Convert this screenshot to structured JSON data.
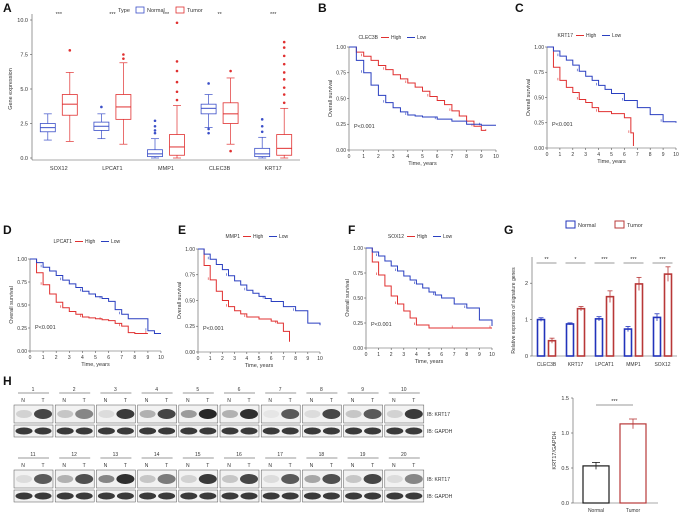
{
  "panels": {
    "A": "A",
    "B": "B",
    "C": "C",
    "D": "D",
    "E": "E",
    "F": "F",
    "G": "G",
    "H": "H"
  },
  "colors": {
    "normal": "#3b4fc8",
    "tumor": "#e03030",
    "high": "#e03030",
    "low": "#2a3fc0",
    "normal_bar": "#2233bb",
    "tumor_bar": "#b83838",
    "blot": "#1a1a1a"
  },
  "chart_data": [
    {
      "id": "A",
      "type": "box",
      "legend_title": "Type",
      "legend": [
        "Normal",
        "Tumor"
      ],
      "ylabel": "Gene expression",
      "ylim": [
        0,
        10
      ],
      "yticks": [
        0.0,
        2.5,
        5.0,
        7.5,
        10.0
      ],
      "ytick_labels": [
        "0.0",
        "2.5",
        "5.0",
        "7.5",
        "10.0"
      ],
      "categories": [
        "SOX12",
        "LPCAT1",
        "MMP1",
        "CLEC3B",
        "KRT17"
      ],
      "significance": [
        "***",
        "***",
        "***",
        "**",
        "***"
      ],
      "series": [
        {
          "name": "Normal",
          "boxes": [
            {
              "min": 1.3,
              "q1": 1.9,
              "median": 2.2,
              "q3": 2.5,
              "max": 3.2,
              "outliers": []
            },
            {
              "min": 1.4,
              "q1": 2.0,
              "median": 2.3,
              "q3": 2.6,
              "max": 3.2,
              "outliers": [
                3.7
              ]
            },
            {
              "min": 0.0,
              "q1": 0.1,
              "median": 0.3,
              "q3": 0.6,
              "max": 1.4,
              "outliers": [
                1.8,
                2.0,
                2.3,
                2.7
              ]
            },
            {
              "min": 2.2,
              "q1": 3.2,
              "median": 3.6,
              "q3": 3.9,
              "max": 4.6,
              "outliers": [
                1.8,
                2.1,
                5.4
              ]
            },
            {
              "min": 0.0,
              "q1": 0.1,
              "median": 0.3,
              "q3": 0.7,
              "max": 1.5,
              "outliers": [
                1.9,
                2.3,
                2.8
              ]
            }
          ]
        },
        {
          "name": "Tumor",
          "boxes": [
            {
              "min": 1.2,
              "q1": 3.1,
              "median": 3.9,
              "q3": 4.6,
              "max": 6.2,
              "outliers": [
                7.8
              ]
            },
            {
              "min": 1.0,
              "q1": 2.8,
              "median": 3.7,
              "q3": 4.6,
              "max": 6.9,
              "outliers": [
                7.2,
                7.5
              ]
            },
            {
              "min": 0.0,
              "q1": 0.2,
              "median": 0.8,
              "q3": 1.7,
              "max": 3.8,
              "outliers": [
                4.2,
                4.8,
                5.5,
                6.3,
                7.0,
                9.8
              ]
            },
            {
              "min": 1.0,
              "q1": 2.5,
              "median": 3.2,
              "q3": 4.0,
              "max": 5.8,
              "outliers": [
                0.5,
                6.3
              ]
            },
            {
              "min": 0.0,
              "q1": 0.2,
              "median": 0.7,
              "q3": 1.7,
              "max": 3.6,
              "outliers": [
                4.0,
                4.6,
                5.1,
                5.7,
                6.2,
                6.8,
                7.4,
                8.0,
                8.4
              ]
            }
          ]
        }
      ]
    },
    {
      "id": "B",
      "type": "line",
      "gene": "CLEC3B",
      "legend": [
        "High",
        "Low"
      ],
      "ylabel": "Overall survival",
      "xlabel": "Time, years",
      "pval": "P<0.001",
      "xticks": [
        0,
        1,
        2,
        3,
        4,
        5,
        6,
        7,
        8,
        9,
        10
      ],
      "yticks": [
        0,
        0.25,
        0.5,
        0.75,
        1.0
      ],
      "ytick_labels": [
        "0.00",
        "0.25",
        "0.50",
        "0.75",
        "1.00"
      ],
      "series": [
        {
          "name": "High",
          "x": [
            0,
            0.5,
            1,
            1.5,
            2,
            2.5,
            3,
            3.5,
            4,
            4.5,
            5,
            5.5,
            6,
            6.5,
            7,
            7.5,
            8,
            8.5,
            9,
            9.3
          ],
          "y": [
            1,
            0.95,
            0.91,
            0.87,
            0.82,
            0.78,
            0.73,
            0.69,
            0.65,
            0.61,
            0.57,
            0.52,
            0.48,
            0.44,
            0.38,
            0.33,
            0.28,
            0.23,
            0.19,
            0.2
          ]
        },
        {
          "name": "Low",
          "x": [
            0,
            0.5,
            1,
            1.5,
            2,
            2.5,
            3,
            3.5,
            4,
            4.5,
            5,
            6,
            7,
            8,
            9,
            10
          ],
          "y": [
            1,
            0.87,
            0.75,
            0.63,
            0.53,
            0.46,
            0.41,
            0.37,
            0.34,
            0.33,
            0.32,
            0.3,
            0.28,
            0.25,
            0.24,
            0.24
          ]
        }
      ]
    },
    {
      "id": "C",
      "type": "line",
      "gene": "KRT17",
      "legend": [
        "High",
        "Low"
      ],
      "ylabel": "Overall survival",
      "xlabel": "Time, years",
      "pval": "P<0.001",
      "xticks": [
        0,
        1,
        2,
        3,
        4,
        5,
        6,
        7,
        8,
        9,
        10
      ],
      "yticks": [
        0,
        0.25,
        0.5,
        0.75,
        1.0
      ],
      "ytick_labels": [
        "0.00",
        "0.25",
        "0.50",
        "0.75",
        "1.00"
      ],
      "series": [
        {
          "name": "High",
          "x": [
            0,
            0.5,
            1,
            1.5,
            2,
            2.5,
            3,
            3.5,
            4,
            5,
            6,
            6.5,
            6.7
          ],
          "y": [
            1,
            0.8,
            0.67,
            0.6,
            0.55,
            0.48,
            0.45,
            0.4,
            0.36,
            0.34,
            0.3,
            0.15,
            0.02
          ]
        },
        {
          "name": "Low",
          "x": [
            0,
            0.5,
            1,
            1.5,
            2,
            2.5,
            3,
            3.5,
            4,
            4.5,
            5,
            6,
            7,
            8,
            9,
            10
          ],
          "y": [
            1,
            0.96,
            0.91,
            0.87,
            0.82,
            0.76,
            0.71,
            0.67,
            0.62,
            0.58,
            0.54,
            0.47,
            0.4,
            0.33,
            0.26,
            0.25
          ]
        }
      ]
    },
    {
      "id": "D",
      "type": "line",
      "gene": "LPCAT1",
      "legend": [
        "High",
        "Low"
      ],
      "ylabel": "Overall survival",
      "xlabel": "Time, years",
      "pval": "P<0.001",
      "xticks": [
        0,
        1,
        2,
        3,
        4,
        5,
        6,
        7,
        8,
        9,
        10
      ],
      "yticks": [
        0,
        0.25,
        0.5,
        0.75,
        1.0
      ],
      "ytick_labels": [
        "0.00",
        "0.25",
        "0.50",
        "0.75",
        "1.00"
      ],
      "series": [
        {
          "name": "High",
          "x": [
            0,
            0.5,
            1,
            1.5,
            2,
            2.5,
            3,
            3.5,
            4,
            4.5,
            5,
            5.5,
            6,
            6.5,
            7,
            7.5,
            8,
            9
          ],
          "y": [
            1,
            0.85,
            0.72,
            0.62,
            0.53,
            0.47,
            0.43,
            0.4,
            0.37,
            0.36,
            0.35,
            0.34,
            0.33,
            0.3,
            0.27,
            0.2,
            0.19,
            0.19
          ]
        },
        {
          "name": "Low",
          "x": [
            0,
            0.5,
            1,
            1.5,
            2,
            2.5,
            3,
            3.5,
            4,
            4.5,
            5,
            5.5,
            6,
            6.5,
            7,
            7.5,
            8,
            9,
            9.5,
            10
          ],
          "y": [
            1,
            0.96,
            0.91,
            0.87,
            0.82,
            0.77,
            0.73,
            0.69,
            0.65,
            0.62,
            0.59,
            0.57,
            0.54,
            0.45,
            0.4,
            0.35,
            0.35,
            0.22,
            0.19,
            0.19
          ]
        }
      ]
    },
    {
      "id": "E",
      "type": "line",
      "gene": "MMP1",
      "legend": [
        "High",
        "Low"
      ],
      "ylabel": "Overall survival",
      "xlabel": "Time, years",
      "pval": "P<0.001",
      "xticks": [
        0,
        1,
        2,
        3,
        4,
        5,
        6,
        7,
        8,
        9,
        10
      ],
      "yticks": [
        0,
        0.25,
        0.5,
        0.75,
        1.0
      ],
      "ytick_labels": [
        "0.00",
        "0.25",
        "0.50",
        "0.75",
        "1.00"
      ],
      "series": [
        {
          "name": "High",
          "x": [
            0,
            0.5,
            1,
            1.5,
            2,
            2.5,
            3,
            3.5,
            4,
            5,
            6,
            6.5,
            7,
            7.5
          ],
          "y": [
            1,
            0.84,
            0.7,
            0.59,
            0.5,
            0.44,
            0.4,
            0.37,
            0.34,
            0.32,
            0.3,
            0.28,
            0.2,
            0.1
          ]
        },
        {
          "name": "Low",
          "x": [
            0,
            0.5,
            1,
            1.5,
            2,
            2.5,
            3,
            3.5,
            4,
            4.5,
            5,
            5.5,
            6,
            7,
            8,
            9,
            10
          ],
          "y": [
            1,
            0.95,
            0.9,
            0.85,
            0.8,
            0.74,
            0.69,
            0.65,
            0.6,
            0.57,
            0.54,
            0.52,
            0.49,
            0.44,
            0.4,
            0.28,
            0.26
          ]
        }
      ]
    },
    {
      "id": "F",
      "type": "line",
      "gene": "SOX12",
      "legend": [
        "High",
        "Low"
      ],
      "ylabel": "Overall survival",
      "xlabel": "Time, years",
      "pval": "P<0.001",
      "xticks": [
        0,
        1,
        2,
        3,
        4,
        5,
        6,
        7,
        8,
        9,
        10
      ],
      "yticks": [
        0,
        0.25,
        0.5,
        0.75,
        1.0
      ],
      "ytick_labels": [
        "0.00",
        "0.25",
        "0.50",
        "0.75",
        "1.00"
      ],
      "series": [
        {
          "name": "High",
          "x": [
            0,
            0.5,
            1,
            1.5,
            2,
            2.5,
            3,
            3.5,
            4,
            5,
            6,
            7,
            8,
            9,
            10
          ],
          "y": [
            1,
            0.86,
            0.73,
            0.62,
            0.52,
            0.44,
            0.37,
            0.3,
            0.23,
            0.2,
            0.2,
            0.2,
            0.2,
            0.2,
            0.2
          ]
        },
        {
          "name": "Low",
          "x": [
            0,
            0.5,
            1,
            1.5,
            2,
            2.5,
            3,
            3.5,
            4,
            4.5,
            5,
            5.5,
            6,
            7,
            8,
            9,
            10
          ],
          "y": [
            1,
            0.96,
            0.92,
            0.87,
            0.82,
            0.77,
            0.72,
            0.68,
            0.64,
            0.6,
            0.56,
            0.53,
            0.5,
            0.44,
            0.4,
            0.28,
            0.22
          ]
        }
      ]
    },
    {
      "id": "G",
      "type": "bar",
      "legend": [
        "Normal",
        "Tumor"
      ],
      "ylabel": "Relative expression of signature genes",
      "categories": [
        "CLEC3B",
        "KRT17",
        "LPCAT1",
        "MMP1",
        "SOX12"
      ],
      "ylim": [
        0,
        2.5
      ],
      "yticks": [
        0,
        1,
        2
      ],
      "ytick_labels": [
        "0",
        "1",
        "2"
      ],
      "significance": [
        "**",
        "*",
        "***",
        "***",
        "***"
      ],
      "series": [
        {
          "name": "Normal",
          "values": [
            1.0,
            0.88,
            1.02,
            0.74,
            1.06
          ],
          "errors": [
            0.05,
            0.03,
            0.06,
            0.07,
            0.1
          ]
        },
        {
          "name": "Tumor",
          "values": [
            0.42,
            1.3,
            1.63,
            1.98,
            2.25
          ],
          "errors": [
            0.07,
            0.06,
            0.16,
            0.18,
            0.2
          ]
        }
      ]
    },
    {
      "id": "H-bar",
      "type": "bar",
      "ylabel": "KRT17/GAPDH",
      "categories": [
        "Normal",
        "Tumor"
      ],
      "values": [
        0.53,
        1.13
      ],
      "errors": [
        0.05,
        0.07
      ],
      "ylim": [
        0,
        1.5
      ],
      "yticks": [
        0,
        0.5,
        1.0,
        1.5
      ],
      "ytick_labels": [
        "0.0",
        "0.5",
        "1.0",
        "1.5"
      ],
      "significance": "***"
    }
  ],
  "blot": {
    "lanes_row1": [
      "1",
      "2",
      "3",
      "4",
      "5",
      "6",
      "7",
      "8",
      "9",
      "10"
    ],
    "lanes_row2": [
      "11",
      "12",
      "13",
      "14",
      "15",
      "16",
      "17",
      "18",
      "19",
      "20"
    ],
    "n_label": "N",
    "t_label": "T",
    "band_labels": [
      "IB: KRT17",
      "IB: GAPDH"
    ],
    "krt17_intensity_row1": [
      [
        0.15,
        0.8
      ],
      [
        0.2,
        0.5
      ],
      [
        0.1,
        0.85
      ],
      [
        0.3,
        0.8
      ],
      [
        0.4,
        0.95
      ],
      [
        0.3,
        0.9
      ],
      [
        0.05,
        0.7
      ],
      [
        0.1,
        0.8
      ],
      [
        0.2,
        0.7
      ],
      [
        0.15,
        0.85
      ]
    ],
    "krt17_intensity_row2": [
      [
        0.1,
        0.7
      ],
      [
        0.3,
        0.75
      ],
      [
        0.5,
        0.9
      ],
      [
        0.2,
        0.55
      ],
      [
        0.15,
        0.85
      ],
      [
        0.2,
        0.8
      ],
      [
        0.1,
        0.7
      ],
      [
        0.35,
        0.75
      ],
      [
        0.2,
        0.8
      ],
      [
        0.1,
        0.5
      ]
    ]
  }
}
